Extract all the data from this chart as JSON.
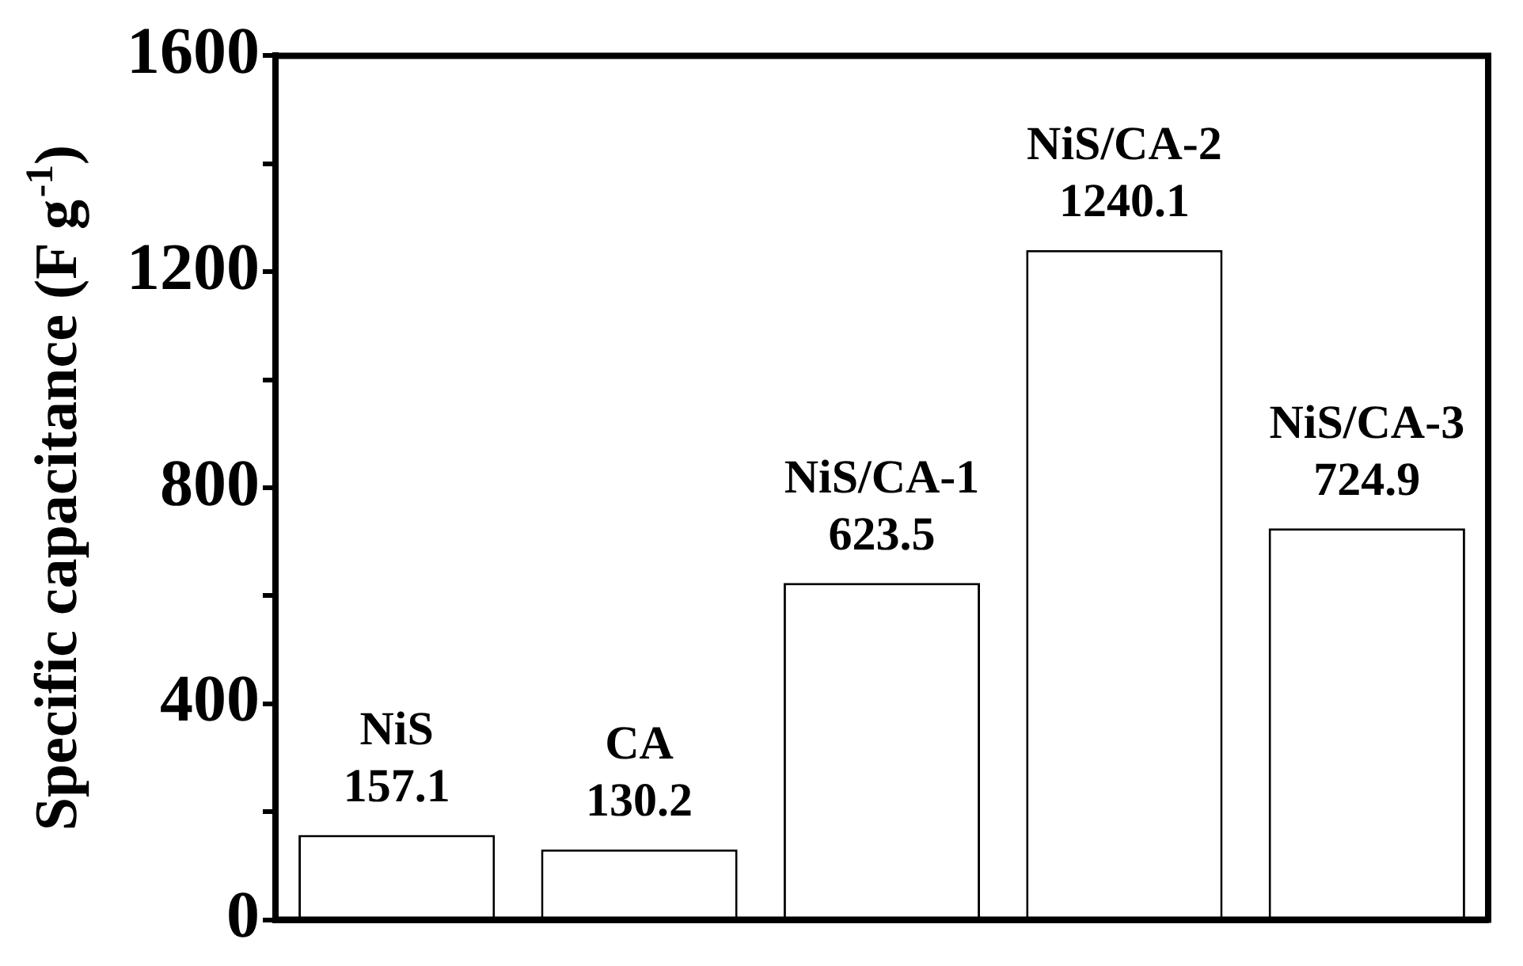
{
  "chart_data": {
    "type": "bar",
    "ylabel": "Specific capacitance (F g$^{-1}$)",
    "categories": [
      "NiS",
      "CA",
      "NiS/CA-1",
      "NiS/CA-2",
      "NiS/CA-3"
    ],
    "values": [
      157.1,
      130.2,
      623.5,
      1240.1,
      724.9
    ],
    "color": "#ffffff",
    "ylim": [
      0,
      1600
    ],
    "yticks": [
      0,
      {
        "value": 200,
        "label": null
      },
      400,
      {
        "value": 600,
        "label": null
      },
      800,
      {
        "value": 1000,
        "label": null
      },
      1200,
      {
        "value": 1400,
        "label": null
      },
      1600
    ],
    "data_labels": true,
    "tick_labels": "y",
    "grid": false,
    "legend": false
  }
}
